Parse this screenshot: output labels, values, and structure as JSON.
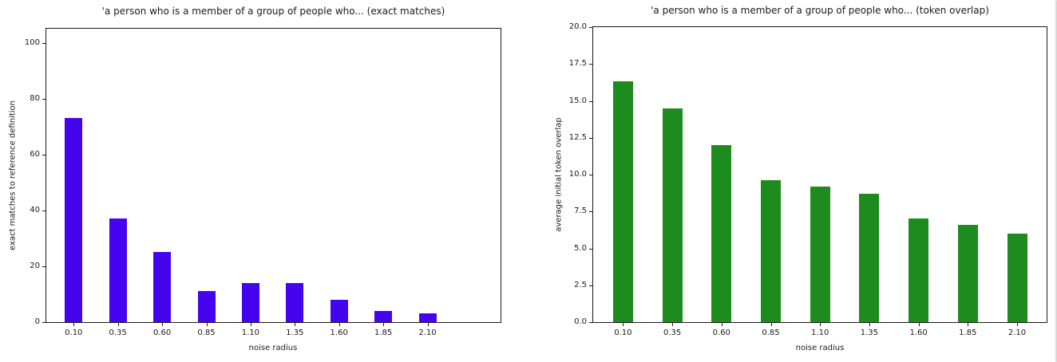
{
  "chart_data": [
    {
      "type": "bar",
      "title": "'a person who is a member of a group of people who... (exact matches)",
      "xlabel": "noise radius",
      "ylabel": "exact matches to reference definition",
      "categories": [
        "0.10",
        "0.35",
        "0.60",
        "0.85",
        "1.10",
        "1.35",
        "1.60",
        "1.85",
        "2.10"
      ],
      "values": [
        73,
        37,
        25,
        11,
        14,
        14,
        8,
        4,
        3
      ],
      "bar_color": "#4405ee",
      "ylim": [
        0,
        105
      ],
      "ytick_labels": [
        "0",
        "20",
        "40",
        "60",
        "80",
        "100"
      ],
      "ytick_values": [
        0,
        20,
        40,
        60,
        80,
        100
      ],
      "grid": false,
      "legend": null
    },
    {
      "type": "bar",
      "title": "'a person who is a member of a group of people who... (token overlap)",
      "xlabel": "noise radius",
      "ylabel": "average initial token overlap",
      "categories": [
        "0.10",
        "0.35",
        "0.60",
        "0.85",
        "1.10",
        "1.35",
        "1.60",
        "1.85",
        "2.10"
      ],
      "values": [
        16.3,
        14.5,
        12.0,
        9.6,
        9.2,
        8.7,
        7.0,
        6.6,
        6.0
      ],
      "bar_color": "#1e8b1e",
      "ylim": [
        0,
        20
      ],
      "ytick_labels": [
        "0.0",
        "2.5",
        "5.0",
        "7.5",
        "10.0",
        "12.5",
        "15.0",
        "17.5",
        "20.0"
      ],
      "ytick_values": [
        0,
        2.5,
        5,
        7.5,
        10,
        12.5,
        15,
        17.5,
        20
      ],
      "grid": false,
      "legend": null
    }
  ]
}
